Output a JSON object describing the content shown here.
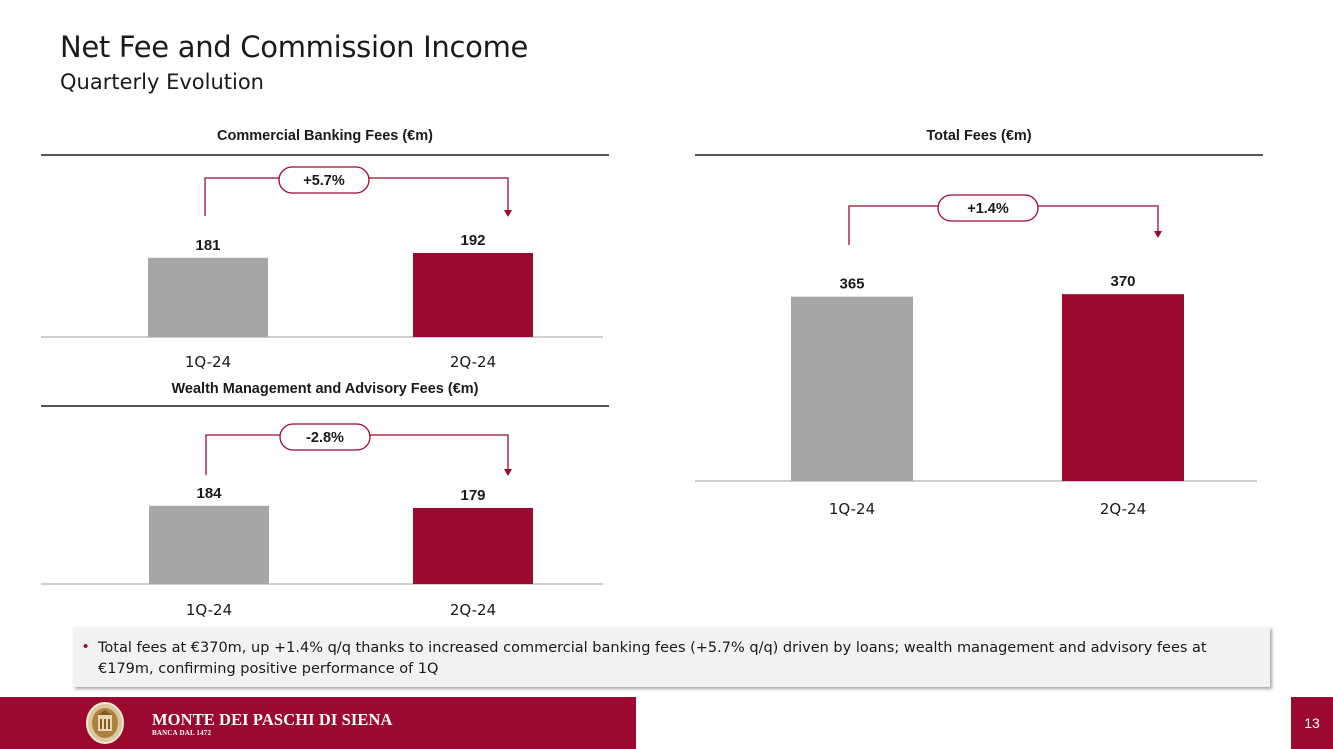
{
  "header": {
    "title": "Net Fee and Commission Income",
    "subtitle": "Quarterly Evolution"
  },
  "colors": {
    "accent": "#9b0a2e",
    "bar_gray": "#a6a6a6",
    "text": "#1a1a1a"
  },
  "chart_data": [
    {
      "id": "commercial",
      "type": "bar",
      "title": "Commercial Banking Fees (€m)",
      "categories": [
        "1Q-24",
        "2Q-24"
      ],
      "values": [
        181,
        192
      ],
      "value_labels": [
        "181",
        "192"
      ],
      "bar_colors": [
        "#a6a6a6",
        "#9b0a2e"
      ],
      "change_label": "+5.7%",
      "ylim": [
        0,
        200
      ],
      "grid": false,
      "legend": "none"
    },
    {
      "id": "wealth",
      "type": "bar",
      "title": "Wealth Management and Advisory Fees (€m)",
      "categories": [
        "1Q-24",
        "2Q-24"
      ],
      "values": [
        184,
        179
      ],
      "value_labels": [
        "184",
        "179"
      ],
      "bar_colors": [
        "#a6a6a6",
        "#9b0a2e"
      ],
      "change_label": "-2.8%",
      "ylim": [
        0,
        200
      ],
      "grid": false,
      "legend": "none"
    },
    {
      "id": "total",
      "type": "bar",
      "title": "Total Fees (€m)",
      "categories": [
        "1Q-24",
        "2Q-24"
      ],
      "values": [
        365,
        370
      ],
      "value_labels": [
        "365",
        "370"
      ],
      "bar_colors": [
        "#a6a6a6",
        "#9b0a2e"
      ],
      "change_label": "+1.4%",
      "ylim": [
        0,
        400
      ],
      "grid": false,
      "legend": "none"
    }
  ],
  "note": {
    "bullet": "•",
    "text": "Total fees at €370m, up +1.4% q/q thanks to increased commercial banking fees (+5.7% q/q) driven by loans; wealth management and advisory fees at €179m, confirming positive performance of 1Q"
  },
  "footer": {
    "brand": "MONTE DEI PASCHI DI SIENA",
    "tagline": "BANCA DAL 1472",
    "page_number": "13",
    "logo_icon": "bank-seal-icon"
  }
}
